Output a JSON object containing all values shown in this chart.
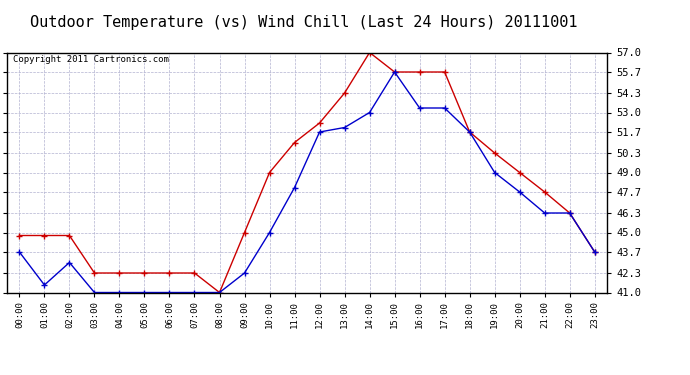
{
  "title": "Outdoor Temperature (vs) Wind Chill (Last 24 Hours) 20111001",
  "copyright": "Copyright 2011 Cartronics.com",
  "x_labels": [
    "00:00",
    "01:00",
    "02:00",
    "03:00",
    "04:00",
    "05:00",
    "06:00",
    "07:00",
    "08:00",
    "09:00",
    "10:00",
    "11:00",
    "12:00",
    "13:00",
    "14:00",
    "15:00",
    "16:00",
    "17:00",
    "18:00",
    "19:00",
    "20:00",
    "21:00",
    "22:00",
    "23:00"
  ],
  "temp_red": [
    44.8,
    44.8,
    44.8,
    42.3,
    42.3,
    42.3,
    42.3,
    42.3,
    41.0,
    45.0,
    49.0,
    51.0,
    52.3,
    54.3,
    57.0,
    55.7,
    55.7,
    55.7,
    51.7,
    50.3,
    49.0,
    47.7,
    46.3,
    43.7
  ],
  "temp_blue": [
    43.7,
    41.5,
    43.0,
    41.0,
    41.0,
    41.0,
    41.0,
    41.0,
    41.0,
    42.3,
    45.0,
    48.0,
    51.7,
    52.0,
    53.0,
    55.7,
    53.3,
    53.3,
    51.7,
    49.0,
    47.7,
    46.3,
    46.3,
    43.7
  ],
  "ylim_min": 41.0,
  "ylim_max": 57.0,
  "yticks": [
    41.0,
    42.3,
    43.7,
    45.0,
    46.3,
    47.7,
    49.0,
    50.3,
    51.7,
    53.0,
    54.3,
    55.7,
    57.0
  ],
  "red_color": "#cc0000",
  "blue_color": "#0000cc",
  "bg_color": "#ffffff",
  "grid_color": "#aaaacc",
  "title_fontsize": 11,
  "copyright_fontsize": 6.5
}
